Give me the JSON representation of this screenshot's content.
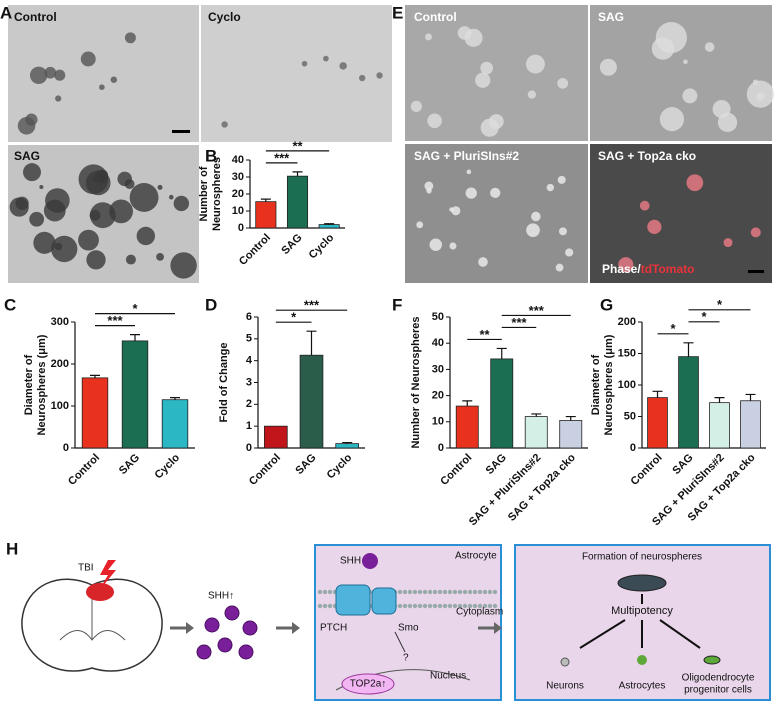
{
  "panel_labels": [
    "A",
    "B",
    "C",
    "D",
    "E",
    "F",
    "G",
    "H"
  ],
  "micrographs": {
    "A": [
      "Control",
      "Cyclo",
      "SAG"
    ],
    "E": [
      "Control",
      "SAG",
      "SAG + PluriSIns#2",
      "SAG + Top2a cko"
    ],
    "E_overlay": [
      "Phase/",
      "tdTomato"
    ]
  },
  "chart_data": [
    {
      "type": "bar",
      "ylabel": [
        "Number of",
        "Neurospheres"
      ],
      "categories": [
        "Control",
        "SAG",
        "Cyclo"
      ],
      "values": [
        15.5,
        30.5,
        2
      ],
      "errors": [
        1.5,
        2.5,
        0.5
      ],
      "colors": [
        "#e8321e",
        "#1b6e52",
        "#2bb8c4"
      ],
      "ylim": [
        0,
        40
      ],
      "yticks": [
        0,
        10,
        20,
        30,
        40
      ],
      "comparisons": [
        {
          "label": "***",
          "pair": [
            0,
            1
          ]
        },
        {
          "label": "**",
          "pair": [
            0,
            2
          ]
        }
      ]
    },
    {
      "type": "bar",
      "ylabel": [
        "Diameter of",
        "Neurospheres (μm)"
      ],
      "categories": [
        "Control",
        "SAG",
        "Cyclo"
      ],
      "values": [
        167,
        255,
        115
      ],
      "errors": [
        6,
        15,
        5
      ],
      "colors": [
        "#e8321e",
        "#1b6e52",
        "#2bb8c4"
      ],
      "ylim": [
        0,
        300
      ],
      "yticks": [
        0,
        100,
        200,
        300
      ],
      "comparisons": [
        {
          "label": "***",
          "pair": [
            0,
            1
          ]
        },
        {
          "label": "*",
          "pair": [
            0,
            2
          ]
        }
      ]
    },
    {
      "type": "bar",
      "ylabel": [
        "Fold of Change"
      ],
      "categories": [
        "Control",
        "SAG",
        "Cyclo"
      ],
      "values": [
        1,
        4.25,
        0.2
      ],
      "errors": [
        null,
        1.1,
        0.05
      ],
      "colors": [
        "#c0151b",
        "#2a5e4a",
        "#2bb8c4"
      ],
      "ylim": [
        0,
        6
      ],
      "yticks": [
        0,
        1,
        2,
        3,
        4,
        5,
        6
      ],
      "comparisons": [
        {
          "label": "*",
          "pair": [
            0,
            1
          ]
        },
        {
          "label": "***",
          "pair": [
            0,
            2
          ]
        }
      ]
    },
    {
      "type": "bar",
      "ylabel": [
        "Number of Neurospheres"
      ],
      "categories": [
        "Control",
        "SAG",
        "SAG + PluriSIns#2",
        "SAG + Top2a cko"
      ],
      "values": [
        16,
        34,
        12,
        10.5
      ],
      "errors": [
        2,
        4,
        1,
        1.5
      ],
      "colors": [
        "#e8321e",
        "#1b6e52",
        "#d4f0e6",
        "#c9d0e2"
      ],
      "ylim": [
        0,
        50
      ],
      "yticks": [
        0,
        10,
        20,
        30,
        40,
        50
      ],
      "comparisons": [
        {
          "label": "**",
          "pair": [
            0,
            1
          ]
        },
        {
          "label": "***",
          "pair": [
            1,
            2
          ]
        },
        {
          "label": "***",
          "pair": [
            1,
            3
          ]
        }
      ]
    },
    {
      "type": "bar",
      "ylabel": [
        "Diameter of",
        "Neurospheres (μm)"
      ],
      "categories": [
        "Control",
        "SAG",
        "SAG + PluriSIns#2",
        "SAG + Top2a cko"
      ],
      "values": [
        80,
        145,
        72,
        75
      ],
      "errors": [
        10,
        22,
        8,
        10
      ],
      "colors": [
        "#e8321e",
        "#1b6e52",
        "#d4f0e6",
        "#c9d0e2"
      ],
      "ylim": [
        0,
        200
      ],
      "yticks": [
        0,
        50,
        100,
        150,
        200
      ],
      "comparisons": [
        {
          "label": "*",
          "pair": [
            0,
            1
          ]
        },
        {
          "label": "*",
          "pair": [
            1,
            2
          ]
        },
        {
          "label": "*",
          "pair": [
            1,
            3
          ]
        }
      ]
    }
  ],
  "diagram": {
    "tbi": "TBI",
    "shh_up": "SHH↑",
    "shh": "SHH",
    "astrocyte": "Astrocyte",
    "ptch": "PTCH",
    "smo": "Smo",
    "cytoplasm": "Cytoplasm",
    "question": "?",
    "nucleus": "Nucleus",
    "top2a": "TOP2a↑",
    "formation": "Formation of neurospheres",
    "multipotency": "Multipotency",
    "neurons": "Neurons",
    "astrocytes": "Astrocytes",
    "opc": [
      "Oligodendrocyte",
      "progenitor cells"
    ]
  }
}
